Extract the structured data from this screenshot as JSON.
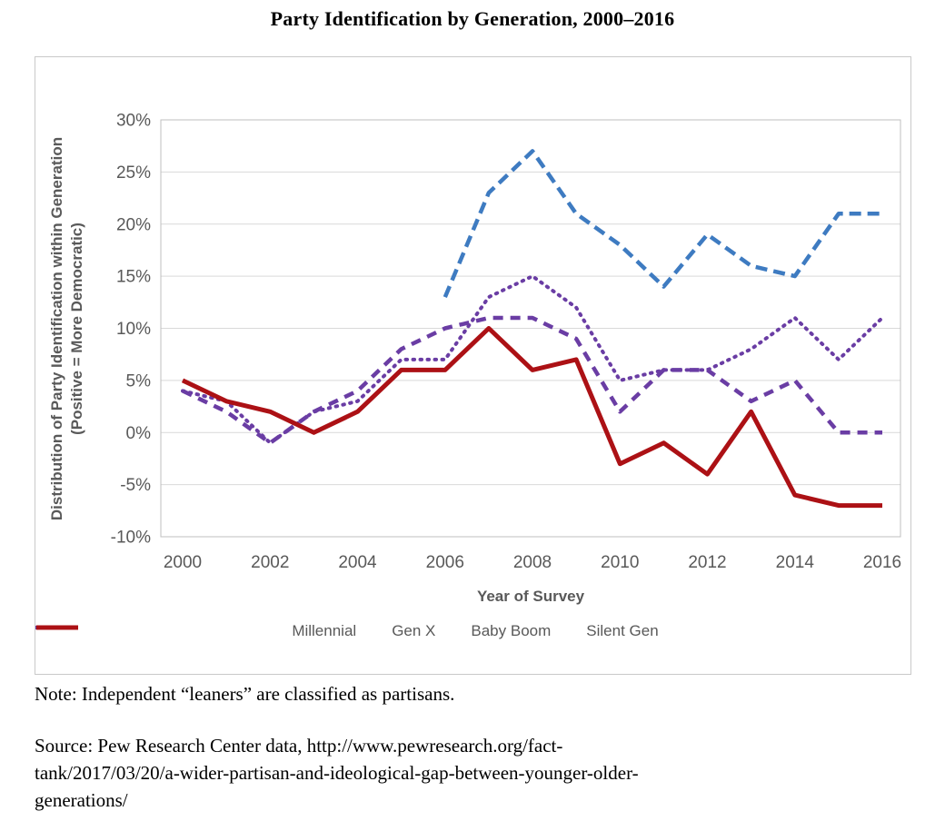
{
  "title": "Party Identification by Generation, 2000–2016",
  "note": "Note: Independent “leaners” are classified as partisans.",
  "source_lines": [
    "Source: Pew Research Center data, http://www.pewresearch.org/fact-",
    "tank/2017/03/20/a-wider-partisan-and-ideological-gap-between-younger-older-",
    "generations/"
  ],
  "chart_data": {
    "type": "line",
    "title": "Party Identification by Generation, 2000–2016",
    "xlabel": "Year of Survey",
    "ylabel_lines": [
      "Distribution of Party Identification within Generation",
      "(Positive = More Democratic)"
    ],
    "x": [
      2000,
      2001,
      2002,
      2003,
      2004,
      2005,
      2006,
      2007,
      2008,
      2009,
      2010,
      2011,
      2012,
      2013,
      2014,
      2015,
      2016
    ],
    "xticks": [
      2000,
      2002,
      2004,
      2006,
      2008,
      2010,
      2012,
      2014,
      2016
    ],
    "yticks": [
      30,
      25,
      20,
      15,
      10,
      5,
      0,
      -5,
      -10
    ],
    "ytick_labels": [
      "30%",
      "25%",
      "20%",
      "15%",
      "10%",
      "5%",
      "0%",
      "-5%",
      "-10%"
    ],
    "ylim": [
      -10,
      30
    ],
    "grid": true,
    "legend_position": "bottom",
    "series": [
      {
        "name": "Millennial",
        "color": "#3e7bc1",
        "style": "dashed",
        "values": [
          null,
          null,
          null,
          null,
          null,
          null,
          13,
          23,
          27,
          21,
          18,
          14,
          19,
          16,
          15,
          21,
          21
        ]
      },
      {
        "name": "Gen X",
        "color": "#6a3da4",
        "style": "dotted",
        "values": [
          4,
          3,
          -1,
          2,
          3,
          7,
          7,
          13,
          15,
          12,
          5,
          6,
          6,
          8,
          11,
          7,
          11
        ]
      },
      {
        "name": "Baby Boom",
        "color": "#6a3da4",
        "style": "dashed2",
        "values": [
          4,
          2,
          -1,
          2,
          4,
          8,
          10,
          11,
          11,
          9,
          2,
          6,
          6,
          3,
          5,
          0,
          0
        ]
      },
      {
        "name": "Silent Gen",
        "color": "#ac1115",
        "style": "solid",
        "values": [
          5,
          3,
          2,
          0,
          2,
          6,
          6,
          10,
          6,
          7,
          -3,
          -1,
          -4,
          2,
          -6,
          -7,
          -7
        ]
      }
    ],
    "axis_color": "#bfbfbf",
    "grid_color": "#d9d9d9",
    "tick_color": "#595959"
  }
}
